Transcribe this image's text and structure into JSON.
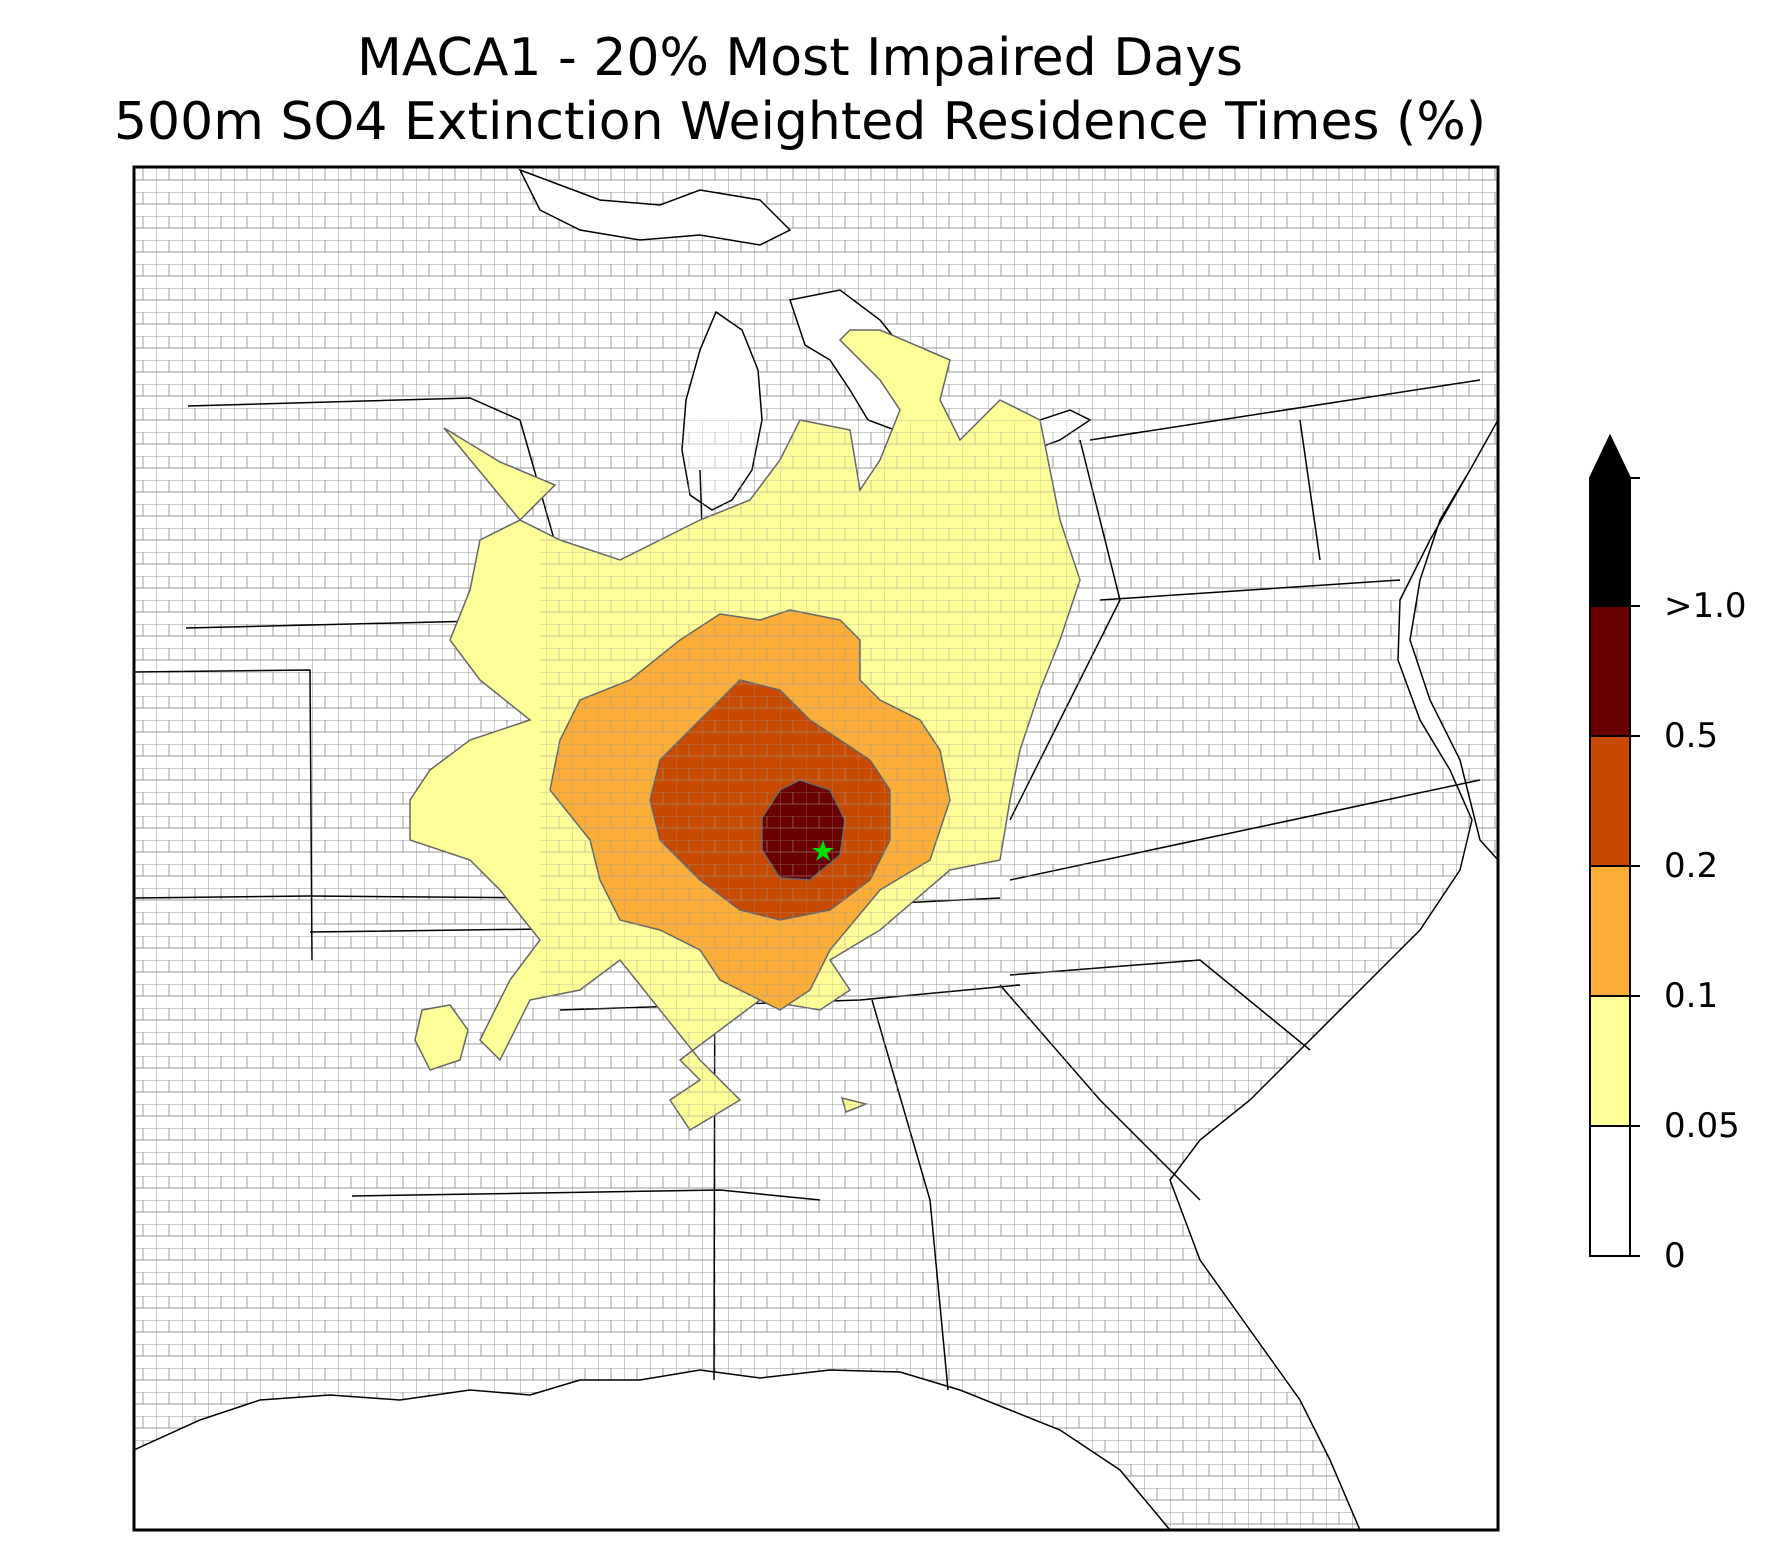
{
  "title": {
    "line1": "MACA1 - 20% Most Impaired Days",
    "line2": "500m SO4 Extinction Weighted Residence Times (%)"
  },
  "colorbar": {
    "levels": [
      {
        "label": "0",
        "color": "#ffffff"
      },
      {
        "label": "0.05",
        "color": "#ffff99"
      },
      {
        "label": "0.1",
        "color": "#fdae38"
      },
      {
        "label": "0.2",
        "color": "#c84a00"
      },
      {
        "label": "0.5",
        "color": "#6b0000"
      },
      {
        "label": ">1.0",
        "color": "#000000"
      }
    ],
    "extend": "max"
  },
  "colors": {
    "state_border": "#000000",
    "county_border": "#9a9a9a",
    "site_marker": "#00dd00"
  },
  "site": {
    "marker": "green-star"
  }
}
